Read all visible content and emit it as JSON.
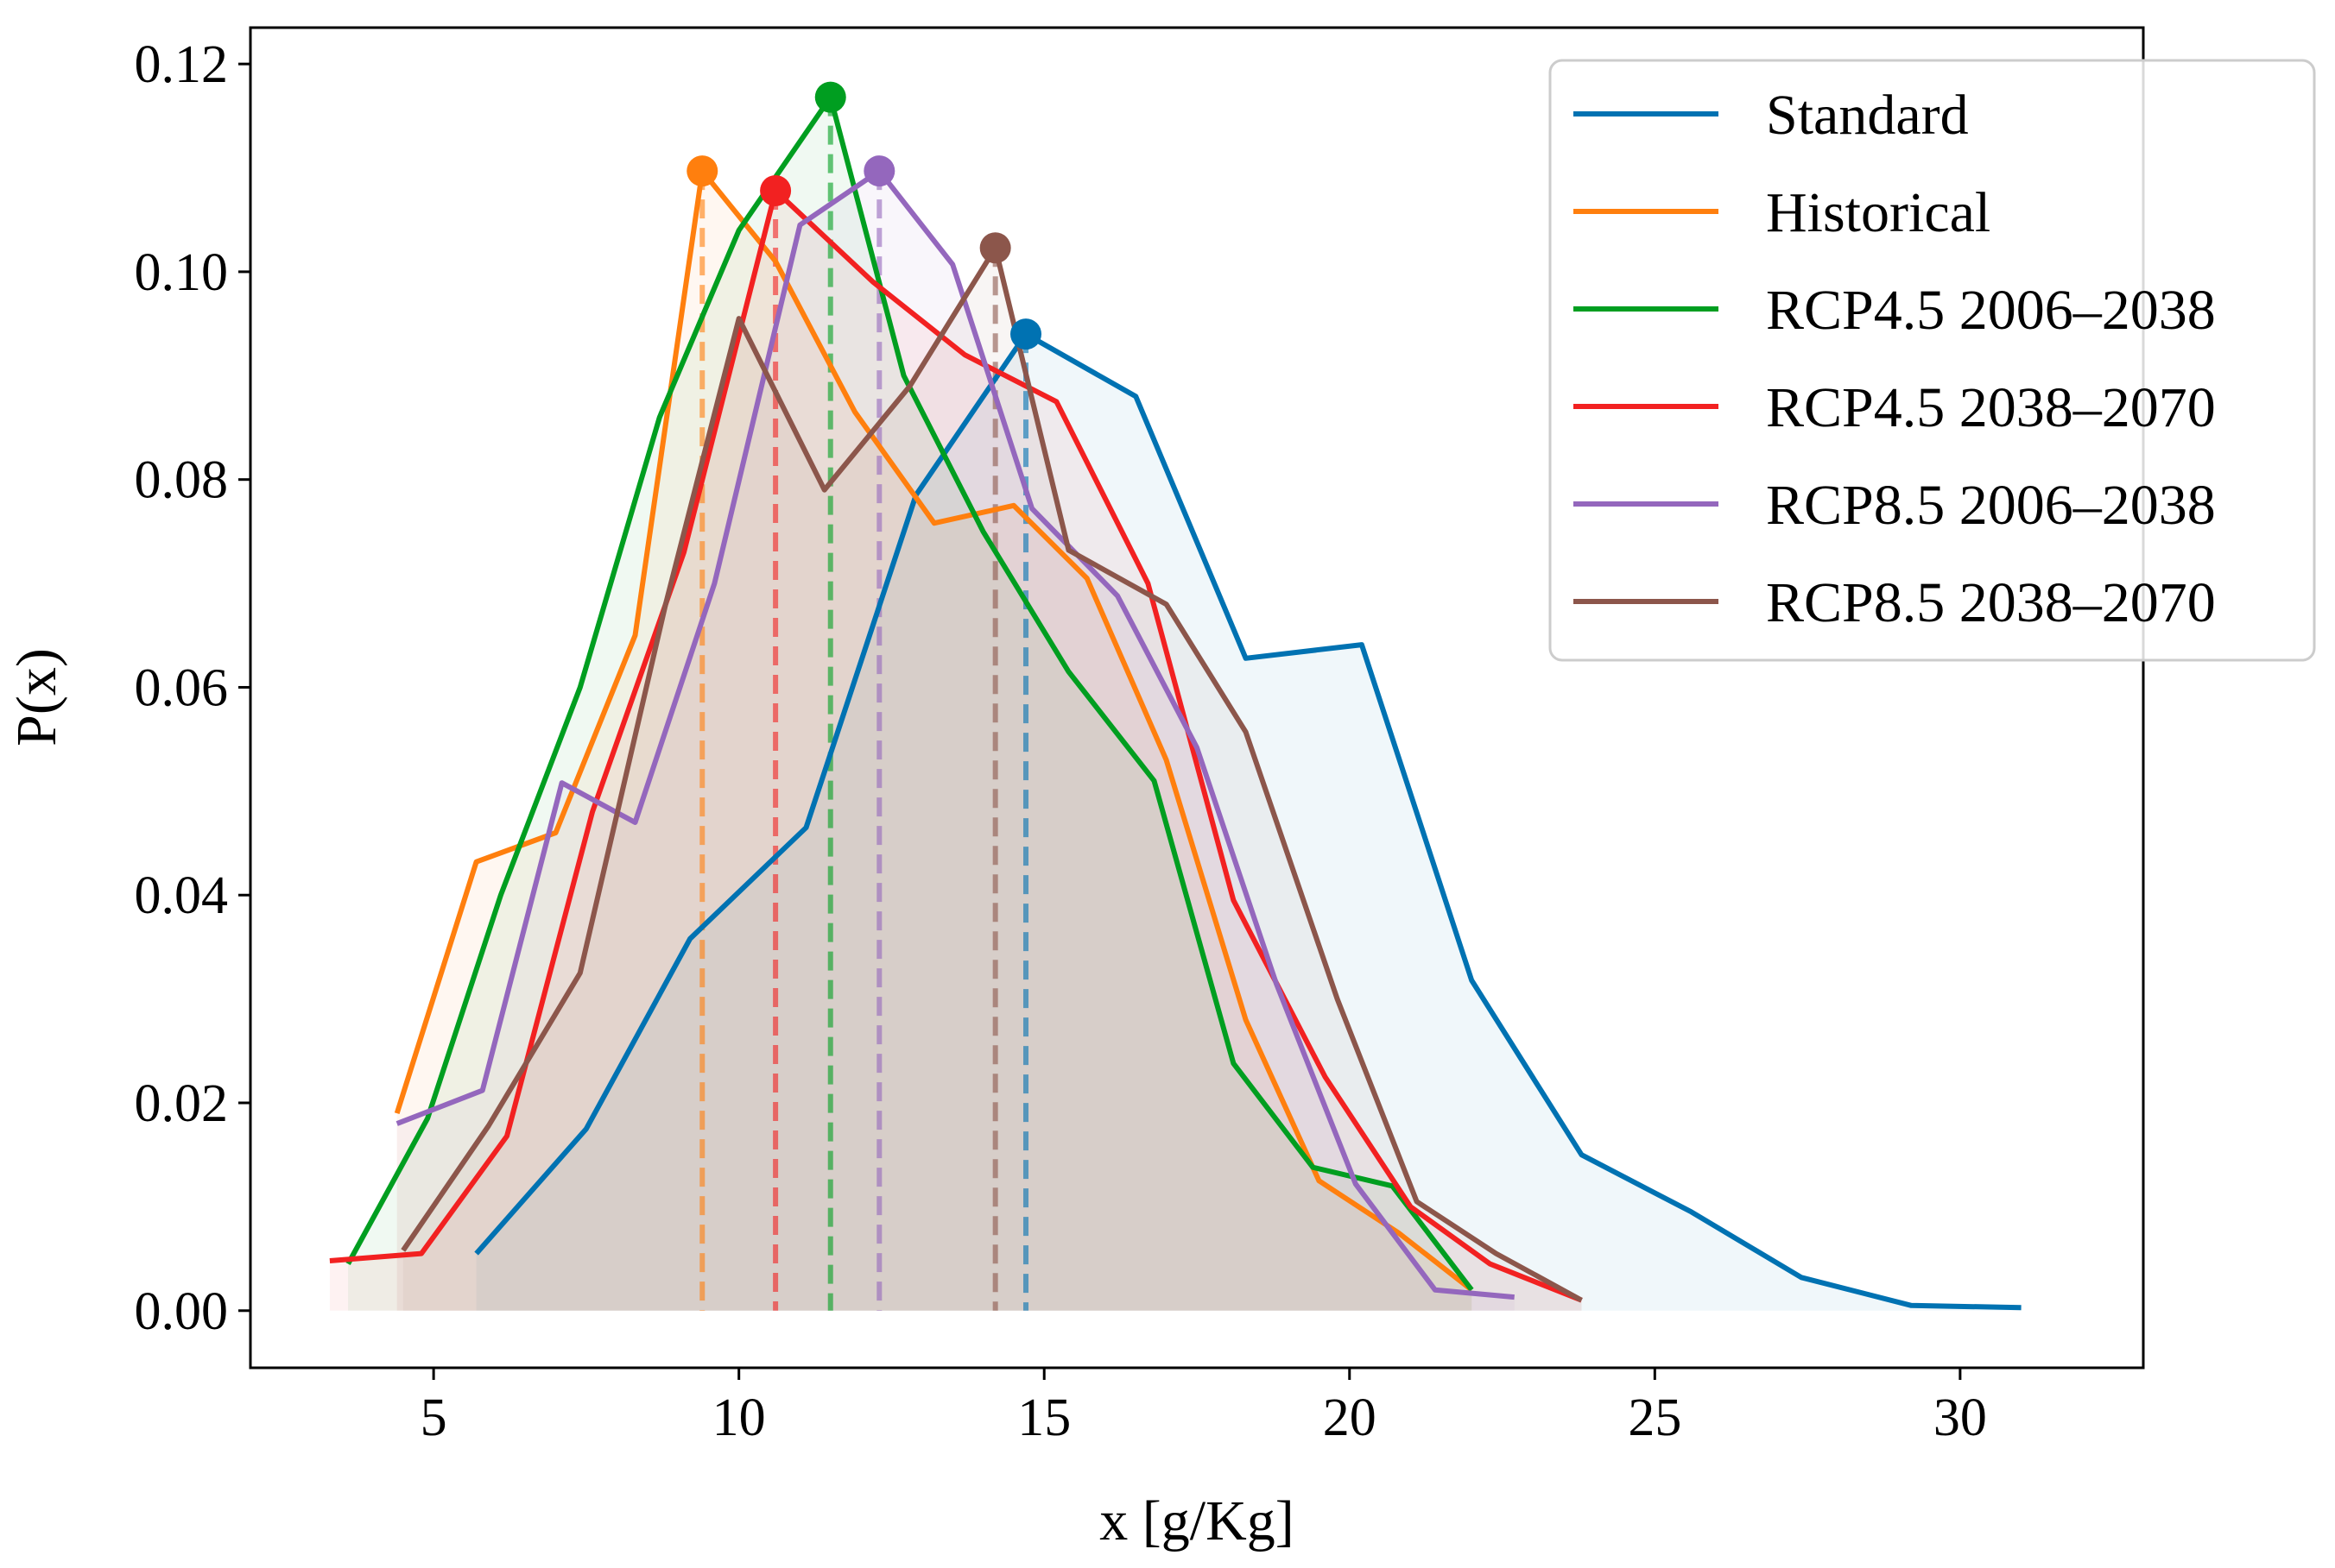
{
  "chart_data": {
    "type": "line",
    "title": "",
    "xlabel": "x [g/Kg]",
    "ylabel": "P(x)",
    "xlim": [
      2.0,
      33.0
    ],
    "ylim": [
      -0.0055,
      0.1235
    ],
    "xticks": [
      5,
      10,
      15,
      20,
      25,
      30
    ],
    "yticks": [
      0.0,
      0.02,
      0.04,
      0.06,
      0.08,
      0.1,
      0.12
    ],
    "xtick_labels": [
      "5",
      "10",
      "15",
      "20",
      "25",
      "30"
    ],
    "ytick_labels": [
      "0.00",
      "0.02",
      "0.04",
      "0.06",
      "0.08",
      "0.10",
      "0.12"
    ],
    "grid": false,
    "legend_position": "top-right",
    "fill_under_curves": true,
    "peak_markers": true,
    "peak_dashed_lines": true,
    "series": [
      {
        "name": "Standard",
        "color": "#0072b2",
        "x": [
          5.7,
          7.5,
          9.2,
          11.1,
          12.9,
          14.7,
          16.5,
          18.3,
          20.2,
          22.0,
          23.8,
          25.6,
          27.4,
          29.2,
          31.0
        ],
        "y": [
          0.0055,
          0.0175,
          0.0358,
          0.0465,
          0.0785,
          0.094,
          0.088,
          0.0628,
          0.0641,
          0.0318,
          0.015,
          0.0095,
          0.0032,
          0.0005,
          0.0003
        ],
        "peak": [
          14.7,
          0.094
        ]
      },
      {
        "name": "Historical",
        "color": "#ff7f0e",
        "x": [
          4.4,
          5.7,
          7.0,
          8.3,
          9.4,
          10.6,
          11.9,
          13.2,
          14.5,
          15.7,
          17.0,
          18.3,
          19.5,
          20.8,
          22.0
        ],
        "y": [
          0.019,
          0.0432,
          0.046,
          0.065,
          0.1097,
          0.101,
          0.0865,
          0.0758,
          0.0775,
          0.0705,
          0.053,
          0.028,
          0.0125,
          0.0075,
          0.002
        ],
        "peak": [
          9.4,
          0.1097
        ]
      },
      {
        "name": "RCP4.5 2006–2038",
        "color": "#009e20",
        "x": [
          3.6,
          4.9,
          6.1,
          7.4,
          8.7,
          10.0,
          11.5,
          12.7,
          14.0,
          15.4,
          16.8,
          18.1,
          19.4,
          20.7,
          22.0
        ],
        "y": [
          0.0045,
          0.0185,
          0.04,
          0.06,
          0.086,
          0.104,
          0.1168,
          0.09,
          0.075,
          0.0615,
          0.051,
          0.0238,
          0.0138,
          0.012,
          0.002
        ],
        "peak": [
          11.5,
          0.1168
        ]
      },
      {
        "name": "RCP4.5 2038–2070",
        "color": "#f22121",
        "x": [
          3.3,
          4.8,
          6.2,
          7.6,
          9.1,
          10.6,
          12.2,
          13.7,
          15.2,
          16.7,
          18.1,
          19.6,
          21.0,
          22.3,
          23.8
        ],
        "y": [
          0.0048,
          0.0055,
          0.0168,
          0.048,
          0.073,
          0.1078,
          0.099,
          0.092,
          0.0875,
          0.07,
          0.0395,
          0.0225,
          0.01,
          0.0045,
          0.001
        ],
        "peak": [
          10.6,
          0.1078
        ]
      },
      {
        "name": "RCP8.5 2006–2038",
        "color": "#9467bd",
        "x": [
          4.4,
          5.8,
          7.1,
          8.3,
          9.6,
          11.0,
          12.3,
          13.5,
          14.8,
          16.2,
          17.5,
          18.8,
          20.1,
          21.4,
          22.7
        ],
        "y": [
          0.018,
          0.0212,
          0.0508,
          0.047,
          0.07,
          0.1045,
          0.1097,
          0.1007,
          0.0772,
          0.0688,
          0.0542,
          0.0315,
          0.0122,
          0.002,
          0.0013
        ],
        "peak": [
          12.3,
          0.1097
        ]
      },
      {
        "name": "RCP8.5 2038–2070",
        "color": "#8c564b",
        "x": [
          4.5,
          5.9,
          7.4,
          8.8,
          10.0,
          11.4,
          12.8,
          14.2,
          15.4,
          17.0,
          18.3,
          19.8,
          21.1,
          22.4,
          23.8
        ],
        "y": [
          0.0058,
          0.0178,
          0.0325,
          0.068,
          0.0955,
          0.079,
          0.089,
          0.1023,
          0.0732,
          0.068,
          0.0557,
          0.03,
          0.0105,
          0.0055,
          0.001
        ],
        "peak": [
          14.2,
          0.1023
        ]
      }
    ]
  }
}
